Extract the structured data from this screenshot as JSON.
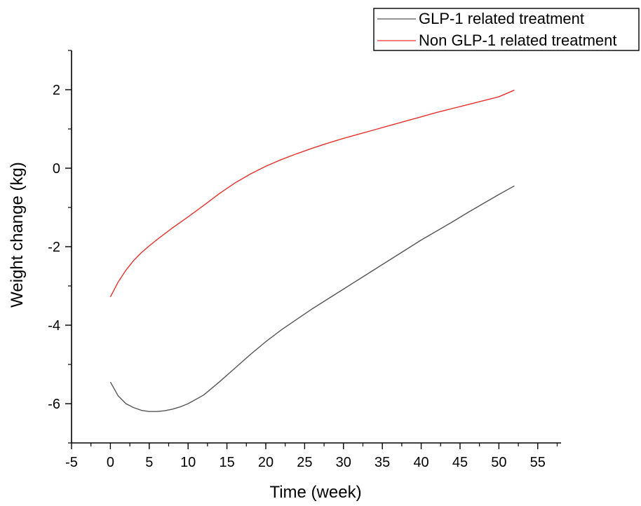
{
  "chart_data": {
    "type": "line",
    "xlabel": "Time (week)",
    "ylabel": "Weight change (kg)",
    "xlim": [
      -5,
      58
    ],
    "ylim": [
      -7,
      3
    ],
    "xticks": [
      -5,
      0,
      5,
      10,
      15,
      20,
      25,
      30,
      35,
      40,
      45,
      50,
      55
    ],
    "yticks": [
      -6,
      -4,
      -2,
      0,
      2
    ],
    "grid": false,
    "legend_position": "top-right",
    "series": [
      {
        "name": "GLP-1 related treatment",
        "color": "#555555",
        "x": [
          0,
          1,
          2,
          3,
          4,
          5,
          6,
          7,
          8,
          9,
          10,
          12,
          14,
          16,
          18,
          20,
          22,
          24,
          26,
          28,
          30,
          32,
          34,
          36,
          38,
          40,
          42,
          44,
          46,
          48,
          50,
          52
        ],
        "y": [
          -5.45,
          -5.8,
          -6.0,
          -6.1,
          -6.17,
          -6.2,
          -6.2,
          -6.18,
          -6.14,
          -6.08,
          -6.0,
          -5.78,
          -5.45,
          -5.1,
          -4.75,
          -4.42,
          -4.12,
          -3.85,
          -3.58,
          -3.33,
          -3.08,
          -2.83,
          -2.58,
          -2.33,
          -2.08,
          -1.83,
          -1.6,
          -1.37,
          -1.13,
          -0.9,
          -0.67,
          -0.45
        ]
      },
      {
        "name": "Non GLP-1 related treatment",
        "color": "#e8312a",
        "x": [
          0,
          1,
          2,
          3,
          4,
          5,
          6,
          8,
          10,
          12,
          14,
          16,
          18,
          20,
          22,
          24,
          26,
          28,
          30,
          32,
          34,
          36,
          38,
          40,
          42,
          44,
          46,
          48,
          50,
          52
        ],
        "y": [
          -3.28,
          -2.9,
          -2.6,
          -2.35,
          -2.15,
          -1.98,
          -1.82,
          -1.52,
          -1.24,
          -0.95,
          -0.65,
          -0.38,
          -0.15,
          0.05,
          0.22,
          0.37,
          0.51,
          0.64,
          0.76,
          0.87,
          0.98,
          1.09,
          1.2,
          1.31,
          1.42,
          1.52,
          1.62,
          1.72,
          1.82,
          1.99
        ]
      }
    ]
  }
}
